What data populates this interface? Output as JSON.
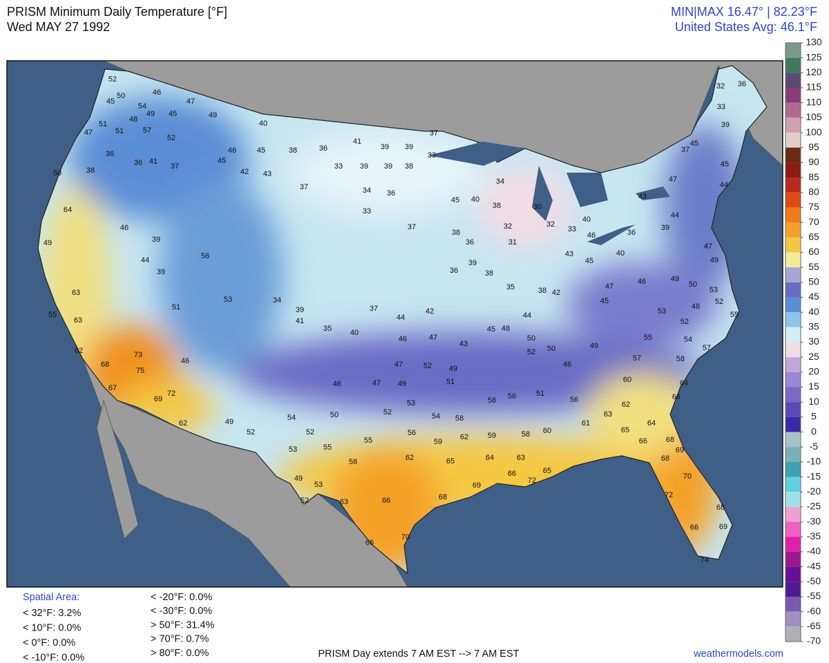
{
  "header": {
    "title": "PRISM Minimum Daily Temperature [°F]",
    "date": "Wed MAY 27 1992",
    "min_max": "MIN|MAX 16.47°  |  82.23°F",
    "average": "United States Avg: 46.1°F"
  },
  "map": {
    "stations": [
      52,
      50,
      46,
      45,
      54,
      49,
      45,
      47,
      49,
      40,
      48,
      57,
      51,
      51,
      52,
      36,
      36,
      41,
      37,
      46,
      45,
      47,
      50,
      38,
      45,
      42,
      43,
      38,
      36,
      41,
      39,
      39,
      33,
      37,
      33,
      39,
      39,
      38,
      37,
      34,
      36,
      33,
      37,
      38,
      36,
      31,
      45,
      40,
      38,
      34,
      30,
      32,
      32,
      33,
      40,
      46,
      40,
      36,
      39,
      44,
      37,
      45,
      39,
      33,
      36,
      32,
      45,
      44,
      46,
      39,
      44,
      39,
      56,
      64,
      49,
      63,
      63,
      55,
      62,
      68,
      73,
      75,
      67,
      69,
      72,
      62,
      46,
      51,
      53,
      34,
      39,
      41,
      35,
      40,
      44,
      37,
      42,
      46,
      47,
      43,
      45,
      48,
      44,
      50,
      52,
      50,
      46,
      47,
      52,
      49,
      51,
      46,
      47,
      49,
      53,
      50,
      52,
      54,
      58,
      56,
      55,
      59,
      62,
      59,
      58,
      60,
      62,
      65,
      64,
      63,
      66,
      72,
      65,
      69,
      68,
      66,
      70,
      66,
      63,
      53,
      52,
      49,
      58,
      55,
      53,
      52,
      54,
      52,
      49,
      58,
      56,
      51,
      56,
      61,
      63,
      62,
      64,
      65,
      66,
      68,
      69,
      68,
      70,
      72,
      68,
      66,
      69,
      74,
      60,
      57,
      58,
      64,
      66,
      55,
      54,
      57,
      52,
      48,
      53,
      49,
      50,
      53,
      52,
      55,
      49,
      47,
      47,
      43,
      36,
      39,
      38,
      35,
      38,
      42,
      43,
      45,
      47,
      45,
      49,
      46
    ]
  },
  "colorbar": {
    "ticks": [
      130,
      125,
      120,
      115,
      110,
      105,
      100,
      95,
      90,
      85,
      80,
      75,
      70,
      65,
      60,
      55,
      50,
      45,
      40,
      35,
      30,
      25,
      20,
      15,
      10,
      5,
      0,
      -5,
      -10,
      -15,
      -20,
      -25,
      -30,
      -35,
      -40,
      -45,
      -50,
      -55,
      -60,
      -65,
      -70
    ],
    "colors": [
      "#7a9a8a",
      "#3d7a5e",
      "#5a4a72",
      "#8a3a78",
      "#b06890",
      "#d0a0b0",
      "#e0cfc8",
      "#6a2a14",
      "#8c1c14",
      "#b82a1e",
      "#e04a14",
      "#f07a1c",
      "#f5a028",
      "#f5c842",
      "#f2ec9a",
      "#a8a4d6",
      "#6a6cc4",
      "#5a8ed4",
      "#8cc6e8",
      "#d2eef6",
      "#f2dce4",
      "#c0a6dc",
      "#9a86d2",
      "#7a68c4",
      "#5a48b6",
      "#3a2aa6",
      "#a8c4c8",
      "#7ab0b8",
      "#3fa0b0",
      "#60d0e0",
      "#a0e0e8",
      "#f0a0d0",
      "#f060c0",
      "#e020a8",
      "#a01890",
      "#6a1098",
      "#501a90",
      "#7a5ab0",
      "#a090c0",
      "#b0b0b8"
    ]
  },
  "footer": {
    "spatial_label": "Spatial Area:",
    "stats_left": [
      "< 32°F: 3.2%",
      "< 10°F: 0.0%",
      "< 0°F: 0.0%",
      "< -10°F: 0.0%"
    ],
    "stats_right": [
      "< -20°F: 0.0%",
      "< -30°F: 0.0%",
      "> 50°F: 31.4%",
      "> 70°F: 0.7%",
      "> 80°F: 0.0%"
    ],
    "note": "PRISM Day extends 7 AM EST --> 7 AM EST",
    "credit": "weathermodels.com"
  }
}
